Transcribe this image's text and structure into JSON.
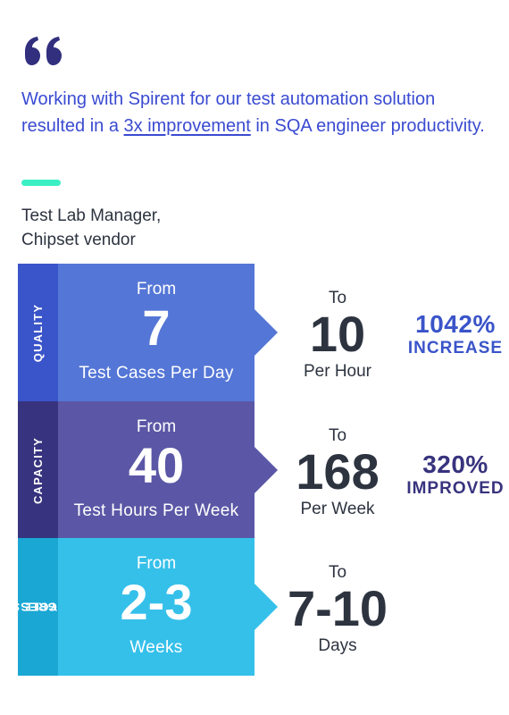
{
  "quote": {
    "icon": "quote-icon",
    "text_before": "Working with Spirent for our test automation solution resulted in a ",
    "highlight": "3x improvement",
    "text_after": " in SQA engineer productivity.",
    "accent_color": "#3cf0c4"
  },
  "attribution": {
    "line1": "Test Lab Manager,",
    "line2": "Chipset vendor"
  },
  "rows": [
    {
      "category": "QUALITY",
      "from_label": "From",
      "from_value": "7",
      "from_unit": "Test Cases Per Day",
      "to_label": "To",
      "to_value": "10",
      "to_unit": "Per Hour",
      "stat_value": "1042%",
      "stat_label": "INCREASE",
      "colors": {
        "side": "#3a54c9",
        "panel": "#5476d6"
      }
    },
    {
      "category": "CAPACITY",
      "from_label": "From",
      "from_value": "40",
      "from_unit": "Test Hours Per Week",
      "to_label": "To",
      "to_value": "168",
      "to_unit": "Per Week",
      "stat_value": "320%",
      "stat_label": "IMPROVED",
      "colors": {
        "side": "#38337e",
        "panel": "#5b57a6"
      }
    },
    {
      "category_line1": "REGRESSION",
      "category_line2": "CYCLE",
      "from_label": "From",
      "from_value": "2-3",
      "from_unit": "Weeks",
      "to_label": "To",
      "to_value": "7-10",
      "to_unit": "Days",
      "colors": {
        "side": "#1aa7d4",
        "panel": "#35c0ea"
      }
    }
  ]
}
